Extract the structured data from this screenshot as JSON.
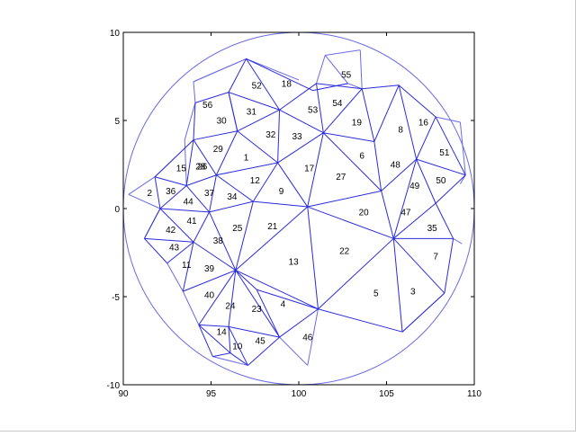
{
  "chart_data": {
    "type": "mesh",
    "xlim": [
      90,
      110
    ],
    "ylim": [
      -10,
      10
    ],
    "xticks": [
      "90",
      "95",
      "100",
      "105",
      "110"
    ],
    "yticks": [
      "10",
      "5",
      "0",
      "-5",
      "-10"
    ],
    "circle": {
      "center": [
        100,
        0
      ],
      "radius": 10,
      "color": "#6a6ae6"
    },
    "edge_color": "#2b2bdd",
    "edges": [
      [
        [
          97,
          8.5
        ],
        [
          100.8,
          6.7
        ]
      ],
      [
        [
          100.8,
          6.7
        ],
        [
          102.8,
          7.1
        ]
      ],
      [
        [
          96,
          6.6
        ],
        [
          97,
          8.5
        ]
      ],
      [
        [
          97,
          8.5
        ],
        [
          98.9,
          5.6
        ]
      ],
      [
        [
          96,
          6.6
        ],
        [
          98.9,
          5.6
        ]
      ],
      [
        [
          98.9,
          5.6
        ],
        [
          101,
          7.1
        ]
      ],
      [
        [
          101,
          7.1
        ],
        [
          103.6,
          6.8
        ]
      ],
      [
        [
          103.6,
          6.8
        ],
        [
          105.7,
          7
        ]
      ],
      [
        [
          105.7,
          7
        ],
        [
          107.8,
          5.2
        ]
      ],
      [
        [
          94,
          3.9
        ],
        [
          94.1,
          6
        ]
      ],
      [
        [
          94.1,
          6
        ],
        [
          96,
          6.6
        ]
      ],
      [
        [
          96,
          6.6
        ],
        [
          96.5,
          4.4
        ]
      ],
      [
        [
          96.5,
          4.4
        ],
        [
          98.9,
          5.6
        ]
      ],
      [
        [
          98.9,
          5.6
        ],
        [
          101.4,
          4.3
        ]
      ],
      [
        [
          101,
          7.1
        ],
        [
          101.4,
          4.3
        ]
      ],
      [
        [
          101.4,
          4.3
        ],
        [
          103.6,
          6.8
        ]
      ],
      [
        [
          103.6,
          6.8
        ],
        [
          104.3,
          3.8
        ]
      ],
      [
        [
          104.3,
          3.8
        ],
        [
          105.7,
          7
        ]
      ],
      [
        [
          105.7,
          7
        ],
        [
          106.7,
          2.8
        ]
      ],
      [
        [
          106.7,
          2.8
        ],
        [
          107.8,
          5.2
        ]
      ],
      [
        [
          107.8,
          5.2
        ],
        [
          109.5,
          1.9
        ]
      ],
      [
        [
          109.5,
          1.9
        ],
        [
          106.7,
          2.8
        ]
      ],
      [
        [
          94,
          3.9
        ],
        [
          96.5,
          4.4
        ]
      ],
      [
        [
          98.9,
          5.6
        ],
        [
          98.8,
          2.6
        ]
      ],
      [
        [
          96.5,
          4.4
        ],
        [
          98.8,
          2.6
        ]
      ],
      [
        [
          98.8,
          2.6
        ],
        [
          101.4,
          4.3
        ]
      ],
      [
        [
          101.4,
          4.3
        ],
        [
          104.3,
          3.8
        ]
      ],
      [
        [
          104.3,
          3.8
        ],
        [
          104.7,
          1
        ]
      ],
      [
        [
          104.7,
          1
        ],
        [
          106.7,
          2.8
        ]
      ],
      [
        [
          101.4,
          4.3
        ],
        [
          104.7,
          1
        ]
      ],
      [
        [
          96,
          6.6
        ],
        [
          96.5,
          4.4
        ]
      ],
      [
        [
          96.5,
          4.4
        ],
        [
          95.3,
          1.9
        ]
      ],
      [
        [
          95.3,
          1.9
        ],
        [
          98.8,
          2.6
        ]
      ],
      [
        [
          94,
          3.9
        ],
        [
          95.3,
          1.9
        ]
      ],
      [
        [
          93.6,
          1.3
        ],
        [
          94,
          3.9
        ]
      ],
      [
        [
          91.8,
          1.8
        ],
        [
          93.6,
          1.3
        ]
      ],
      [
        [
          91.8,
          1.8
        ],
        [
          94,
          3.9
        ]
      ],
      [
        [
          91.8,
          1.8
        ],
        [
          92.1,
          0
        ]
      ],
      [
        [
          92.1,
          0
        ],
        [
          93.6,
          1.3
        ]
      ],
      [
        [
          93.6,
          1.3
        ],
        [
          95.3,
          1.9
        ]
      ],
      [
        [
          95.3,
          1.9
        ],
        [
          94.9,
          -0.2
        ]
      ],
      [
        [
          94.9,
          -0.2
        ],
        [
          93.6,
          1.3
        ]
      ],
      [
        [
          92.1,
          0
        ],
        [
          94.9,
          -0.2
        ]
      ],
      [
        [
          95.3,
          1.9
        ],
        [
          97.4,
          0.4
        ]
      ],
      [
        [
          97.4,
          0.4
        ],
        [
          98.8,
          2.6
        ]
      ],
      [
        [
          94.9,
          -0.2
        ],
        [
          97.4,
          0.4
        ]
      ],
      [
        [
          98.8,
          2.6
        ],
        [
          100.5,
          0.1
        ]
      ],
      [
        [
          97.4,
          0.4
        ],
        [
          100.5,
          0.1
        ]
      ],
      [
        [
          100.5,
          0.1
        ],
        [
          101.4,
          4.3
        ]
      ],
      [
        [
          100.5,
          0.1
        ],
        [
          104.7,
          1
        ]
      ],
      [
        [
          104.7,
          1
        ],
        [
          105.4,
          -1.7
        ]
      ],
      [
        [
          105.4,
          -1.7
        ],
        [
          106.7,
          2.8
        ]
      ],
      [
        [
          106.7,
          2.8
        ],
        [
          107.8,
          0.3
        ]
      ],
      [
        [
          107.8,
          0.3
        ],
        [
          109.5,
          1.9
        ]
      ],
      [
        [
          107.8,
          0.3
        ],
        [
          105.4,
          -1.7
        ]
      ],
      [
        [
          100.5,
          0.1
        ],
        [
          105.4,
          -1.7
        ]
      ],
      [
        [
          105.4,
          -1.7
        ],
        [
          108.8,
          -1.7
        ]
      ],
      [
        [
          108.8,
          -1.7
        ],
        [
          107.8,
          0.3
        ]
      ],
      [
        [
          108.8,
          -1.7
        ],
        [
          108.3,
          -4.8
        ]
      ],
      [
        [
          108.3,
          -4.8
        ],
        [
          105.4,
          -1.7
        ]
      ],
      [
        [
          92.1,
          0
        ],
        [
          91.2,
          -1.7
        ]
      ],
      [
        [
          91.2,
          -1.7
        ],
        [
          94,
          -1.9
        ]
      ],
      [
        [
          94,
          -1.9
        ],
        [
          92.1,
          0
        ]
      ],
      [
        [
          94.9,
          -0.2
        ],
        [
          94,
          -1.9
        ]
      ],
      [
        [
          91.2,
          -1.7
        ],
        [
          92.5,
          -3.1
        ]
      ],
      [
        [
          92.5,
          -3.1
        ],
        [
          94,
          -1.9
        ]
      ],
      [
        [
          94,
          -1.9
        ],
        [
          96.4,
          -3.5
        ]
      ],
      [
        [
          94.9,
          -0.2
        ],
        [
          96.4,
          -3.5
        ]
      ],
      [
        [
          97.4,
          0.4
        ],
        [
          96.4,
          -3.5
        ]
      ],
      [
        [
          96.4,
          -3.5
        ],
        [
          100.5,
          0.1
        ]
      ],
      [
        [
          94,
          -1.9
        ],
        [
          93.4,
          -4.7
        ]
      ],
      [
        [
          93.4,
          -4.7
        ],
        [
          96.4,
          -3.5
        ]
      ],
      [
        [
          96.4,
          -3.5
        ],
        [
          101.1,
          -5.7
        ]
      ],
      [
        [
          101.1,
          -5.7
        ],
        [
          100.5,
          0.1
        ]
      ],
      [
        [
          101.1,
          -5.7
        ],
        [
          105.4,
          -1.7
        ]
      ],
      [
        [
          105.4,
          -1.7
        ],
        [
          105.9,
          -7
        ]
      ],
      [
        [
          108.3,
          -4.8
        ],
        [
          105.9,
          -7
        ]
      ],
      [
        [
          101.1,
          -5.7
        ],
        [
          105.9,
          -7
        ]
      ],
      [
        [
          96.4,
          -3.5
        ],
        [
          96,
          -6.7
        ]
      ],
      [
        [
          96,
          -6.7
        ],
        [
          94.3,
          -6.6
        ]
      ],
      [
        [
          94.3,
          -6.6
        ],
        [
          96.4,
          -3.5
        ]
      ],
      [
        [
          96.4,
          -3.5
        ],
        [
          98.9,
          -7.3
        ]
      ],
      [
        [
          98.9,
          -7.3
        ],
        [
          96,
          -6.7
        ]
      ],
      [
        [
          96,
          -6.7
        ],
        [
          96.1,
          -8.2
        ]
      ],
      [
        [
          96.1,
          -8.2
        ],
        [
          94.3,
          -6.6
        ]
      ],
      [
        [
          94.3,
          -6.6
        ],
        [
          95.1,
          -8.4
        ]
      ],
      [
        [
          95.1,
          -8.4
        ],
        [
          96.1,
          -8.2
        ]
      ],
      [
        [
          96.1,
          -8.2
        ],
        [
          97.1,
          -8.9
        ]
      ],
      [
        [
          97.1,
          -8.9
        ],
        [
          98.9,
          -7.3
        ]
      ],
      [
        [
          98.9,
          -7.3
        ],
        [
          101.1,
          -5.7
        ]
      ],
      [
        [
          96.4,
          -3.5
        ],
        [
          97.6,
          -4.6
        ]
      ],
      [
        [
          97.6,
          -4.6
        ],
        [
          98.9,
          -7.3
        ]
      ],
      [
        [
          96,
          -6.7
        ],
        [
          97.1,
          -8.9
        ]
      ],
      [
        [
          101.1,
          -5.7
        ],
        [
          97.6,
          -4.6
        ]
      ]
    ],
    "outer_edges": [
      [
        [
          97,
          8.5
        ],
        [
          94,
          7.2
        ]
      ],
      [
        [
          94,
          7.2
        ],
        [
          94.1,
          6
        ]
      ],
      [
        [
          100.8,
          6.7
        ],
        [
          102.8,
          7.1
        ]
      ],
      [
        [
          102.8,
          7.1
        ],
        [
          103.6,
          6.8
        ]
      ],
      [
        [
          102.8,
          7.1
        ],
        [
          101.5,
          8.7
        ]
      ],
      [
        [
          101.5,
          8.7
        ],
        [
          101,
          7.1
        ]
      ],
      [
        [
          97,
          8.5
        ],
        [
          100,
          7.3
        ]
      ],
      [
        [
          93.6,
          1.3
        ],
        [
          93.5,
          3.9
        ]
      ],
      [
        [
          93.5,
          3.9
        ],
        [
          94.1,
          6
        ]
      ],
      [
        [
          91.8,
          1.8
        ],
        [
          94,
          3.9
        ]
      ],
      [
        [
          92.1,
          0
        ],
        [
          90.3,
          0.8
        ]
      ],
      [
        [
          90.3,
          0.8
        ],
        [
          91.8,
          1.8
        ]
      ],
      [
        [
          109.5,
          1.9
        ],
        [
          109.2,
          1.4
        ]
      ],
      [
        [
          107.8,
          5.2
        ],
        [
          109.2,
          4.9
        ]
      ],
      [
        [
          109.2,
          4.9
        ],
        [
          109.5,
          1.9
        ]
      ],
      [
        [
          108.8,
          -1.7
        ],
        [
          109.3,
          -2
        ]
      ],
      [
        [
          101.1,
          -5.7
        ],
        [
          100.5,
          -8.9
        ]
      ],
      [
        [
          100.5,
          -8.9
        ],
        [
          98.9,
          -7.3
        ]
      ],
      [
        [
          105.9,
          -7
        ],
        [
          108.3,
          -4.8
        ]
      ],
      [
        [
          92.5,
          -3.1
        ],
        [
          93.4,
          -4.7
        ]
      ],
      [
        [
          93.4,
          -4.7
        ],
        [
          94.3,
          -6.6
        ]
      ],
      [
        [
          95.1,
          -8.4
        ],
        [
          97.1,
          -8.9
        ]
      ],
      [
        [
          91.2,
          -1.7
        ],
        [
          92.1,
          0
        ]
      ],
      [
        [
          101.5,
          8.7
        ],
        [
          103.5,
          9
        ]
      ],
      [
        [
          103.5,
          9
        ],
        [
          103.6,
          6.8
        ]
      ],
      [
        [
          94,
          7.2
        ],
        [
          97,
          8.5
        ]
      ]
    ],
    "labels": [
      {
        "text": "1",
        "x": 97,
        "y": 2.9
      },
      {
        "text": "2",
        "x": 91.5,
        "y": 0.9
      },
      {
        "text": "3",
        "x": 106.5,
        "y": -4.7
      },
      {
        "text": "4",
        "x": 99.1,
        "y": -5.4
      },
      {
        "text": "5",
        "x": 104.4,
        "y": -4.8
      },
      {
        "text": "6",
        "x": 103.6,
        "y": 3
      },
      {
        "text": "7",
        "x": 107.8,
        "y": -2.7
      },
      {
        "text": "8",
        "x": 105.8,
        "y": 4.5
      },
      {
        "text": "9",
        "x": 99,
        "y": 1
      },
      {
        "text": "10",
        "x": 96.5,
        "y": -7.8
      },
      {
        "text": "11",
        "x": 93.6,
        "y": -3.2
      },
      {
        "text": "12",
        "x": 97.5,
        "y": 1.6
      },
      {
        "text": "13",
        "x": 99.7,
        "y": -3
      },
      {
        "text": "14",
        "x": 95.6,
        "y": -7
      },
      {
        "text": "15",
        "x": 93.3,
        "y": 2.3
      },
      {
        "text": "16",
        "x": 107.1,
        "y": 4.9
      },
      {
        "text": "17",
        "x": 100.6,
        "y": 2.3
      },
      {
        "text": "18",
        "x": 99.3,
        "y": 7.1
      },
      {
        "text": "19",
        "x": 103.3,
        "y": 4.9
      },
      {
        "text": "20",
        "x": 103.7,
        "y": -0.2
      },
      {
        "text": "21",
        "x": 98.5,
        "y": -1
      },
      {
        "text": "22",
        "x": 102.6,
        "y": -2.4
      },
      {
        "text": "23",
        "x": 97.6,
        "y": -5.7
      },
      {
        "text": "24",
        "x": 96.1,
        "y": -5.5
      },
      {
        "text": "25",
        "x": 96.5,
        "y": -1.1
      },
      {
        "text": "26",
        "x": 94.5,
        "y": 2.4
      },
      {
        "text": "27",
        "x": 102.4,
        "y": 1.8
      },
      {
        "text": "28",
        "x": 94.4,
        "y": 2.4
      },
      {
        "text": "29",
        "x": 95.4,
        "y": 3.4
      },
      {
        "text": "30",
        "x": 95.6,
        "y": 5
      },
      {
        "text": "31",
        "x": 97.3,
        "y": 5.5
      },
      {
        "text": "32",
        "x": 98.4,
        "y": 4.2
      },
      {
        "text": "33",
        "x": 99.9,
        "y": 4.1
      },
      {
        "text": "34",
        "x": 96.2,
        "y": 0.7
      },
      {
        "text": "35",
        "x": 107.6,
        "y": -1.1
      },
      {
        "text": "36",
        "x": 92.7,
        "y": 1
      },
      {
        "text": "37",
        "x": 94.9,
        "y": 0.9
      },
      {
        "text": "38",
        "x": 95.4,
        "y": -1.8
      },
      {
        "text": "39",
        "x": 94.9,
        "y": -3.4
      },
      {
        "text": "40",
        "x": 94.9,
        "y": -4.9
      },
      {
        "text": "41",
        "x": 93.9,
        "y": -0.7
      },
      {
        "text": "42",
        "x": 92.7,
        "y": -1.2
      },
      {
        "text": "43",
        "x": 92.9,
        "y": -2.2
      },
      {
        "text": "44",
        "x": 93.7,
        "y": 0.4
      },
      {
        "text": "45",
        "x": 97.8,
        "y": -7.5
      },
      {
        "text": "46",
        "x": 100.5,
        "y": -7.3
      },
      {
        "text": "47",
        "x": 106.1,
        "y": -0.2
      },
      {
        "text": "48",
        "x": 105.5,
        "y": 2.5
      },
      {
        "text": "49",
        "x": 106.6,
        "y": 1.3
      },
      {
        "text": "50",
        "x": 108.1,
        "y": 1.6
      },
      {
        "text": "51",
        "x": 108.3,
        "y": 3.2
      },
      {
        "text": "52",
        "x": 97.6,
        "y": 7
      },
      {
        "text": "53",
        "x": 100.8,
        "y": 5.6
      },
      {
        "text": "54",
        "x": 102.2,
        "y": 6
      },
      {
        "text": "55",
        "x": 102.7,
        "y": 7.6
      },
      {
        "text": "56",
        "x": 94.8,
        "y": 5.9
      }
    ]
  }
}
